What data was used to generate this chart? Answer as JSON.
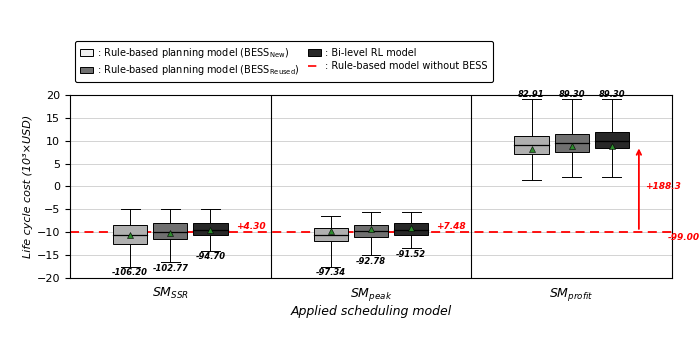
{
  "title": "",
  "xlabel": "Applied scheduling model",
  "ylabel": "Life cycle cost (10³×USD)",
  "ylim": [
    -20,
    20
  ],
  "yticks": [
    -20,
    -15,
    -10,
    -5,
    0,
    5,
    10,
    15,
    20
  ],
  "reference_line": -9.9,
  "reference_label": "-99.00",
  "box_data": {
    "SM_SSR": {
      "BESS_New": {
        "median": -10.5,
        "q1": -12.5,
        "q3": -8.5,
        "whislo": -17.5,
        "whishi": -5.0,
        "mean": -10.62,
        "label": "-106.20"
      },
      "BESS_Reused": {
        "median": -10.0,
        "q1": -11.5,
        "q3": -8.0,
        "whislo": -16.5,
        "whishi": -5.0,
        "mean": -10.277,
        "label": "-102.77"
      },
      "BiRL": {
        "median": -9.5,
        "q1": -10.5,
        "q3": -8.0,
        "whislo": -14.0,
        "whishi": -5.0,
        "mean": -9.47,
        "label": "-94.70"
      }
    },
    "SM_peak": {
      "BESS_New": {
        "median": -10.5,
        "q1": -12.0,
        "q3": -9.0,
        "whislo": -17.5,
        "whishi": -6.5,
        "mean": -9.734,
        "label": "-97.34"
      },
      "BESS_Reused": {
        "median": -9.8,
        "q1": -11.0,
        "q3": -8.5,
        "whislo": -15.0,
        "whishi": -5.5,
        "mean": -9.278,
        "label": "-92.78"
      },
      "BiRL": {
        "median": -9.5,
        "q1": -10.5,
        "q3": -8.0,
        "whislo": -13.5,
        "whishi": -5.5,
        "mean": -9.152,
        "label": "-91.52"
      }
    },
    "SM_profit": {
      "BESS_New": {
        "median": 9.0,
        "q1": 7.0,
        "q3": 11.0,
        "whislo": 1.5,
        "whishi": 19.0,
        "mean": 8.291,
        "label": "82.91"
      },
      "BESS_Reused": {
        "median": 9.5,
        "q1": 7.5,
        "q3": 11.5,
        "whislo": 2.0,
        "whishi": 19.0,
        "mean": 8.93,
        "label": "89.30"
      },
      "BiRL": {
        "median": 10.0,
        "q1": 8.5,
        "q3": 12.0,
        "whislo": 2.0,
        "whishi": 19.0,
        "mean": 8.93,
        "label": "89.30"
      }
    }
  },
  "colors": {
    "BESS_New": "#b0b0b0",
    "BESS_Reused": "#707070",
    "BiRL": "#282828"
  },
  "background_color": "#ffffff",
  "grid_color": "#cccccc",
  "mean_color": "#2d8b2d"
}
